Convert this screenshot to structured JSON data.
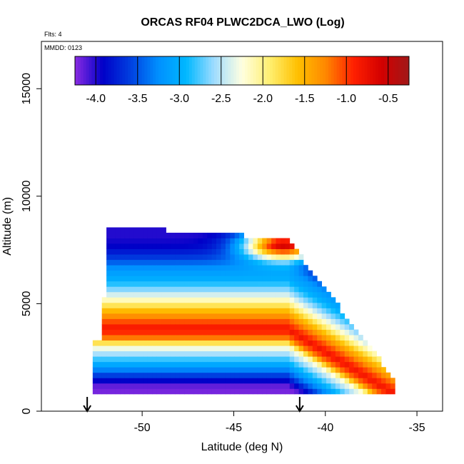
{
  "chart_data": {
    "type": "heatmap",
    "title": "ORCAS RF04 PLWC2DCA_LWO (Log)",
    "annotations": {
      "flights": "Flts: 4",
      "date": "MMDD: 0123"
    },
    "xlabel": "Latitude (deg N)",
    "ylabel": "Altitude (m)",
    "xlim": [
      -55.5,
      -33.6
    ],
    "ylim": [
      0,
      17200
    ],
    "x_ticks": [
      -50,
      -45,
      -40,
      -35
    ],
    "x_tick_labels": [
      "-50",
      "-45",
      "-40",
      "-35"
    ],
    "y_ticks": [
      0,
      5000,
      10000,
      15000
    ],
    "y_tick_labels": [
      "0",
      "5000",
      "10000",
      "15000"
    ],
    "colorbar": {
      "min": -4.25,
      "max": -0.25,
      "ticks": [
        -4.0,
        -3.5,
        -3.0,
        -2.5,
        -2.0,
        -1.5,
        -1.0,
        -0.5
      ],
      "tick_labels": [
        "-4.0",
        "-3.5",
        "-3.0",
        "-2.5",
        "-2.0",
        "-1.5",
        "-1.0",
        "-0.5"
      ],
      "colors": [
        "#8a2be2",
        "#0000c8",
        "#0040e0",
        "#0090ff",
        "#00b8ff",
        "#9fdcff",
        "#ffffe0",
        "#ffef70",
        "#ffc000",
        "#ff8800",
        "#ff2000",
        "#d40000",
        "#a01818"
      ]
    },
    "domain": {
      "lat_min": -52.7,
      "lat_max": -36.3,
      "left_top_lat": -52.0,
      "top_alt": 8500,
      "right_top_lat": -42.2,
      "right_top_alt": 7900,
      "right_bottom_lat": -36.3,
      "right_bottom_alt": 1300,
      "bottom_alt": 800
    },
    "layers": [
      {
        "alt": 1000,
        "value": -4.2
      },
      {
        "alt": 1300,
        "value": -3.9
      },
      {
        "alt": 1700,
        "value": -3.4
      },
      {
        "alt": 2100,
        "value": -3.0
      },
      {
        "alt": 2500,
        "value": -2.6
      },
      {
        "alt": 2900,
        "value": -2.2
      },
      {
        "alt": 3300,
        "value": -1.2
      },
      {
        "alt": 3700,
        "value": -0.8
      },
      {
        "alt": 4100,
        "value": -1.1
      },
      {
        "alt": 4600,
        "value": -1.6
      },
      {
        "alt": 5100,
        "value": -2.2
      },
      {
        "alt": 5500,
        "value": -2.6
      },
      {
        "alt": 6000,
        "value": -3.0
      },
      {
        "alt": 6500,
        "value": -3.2
      },
      {
        "alt": 7000,
        "value": -3.6
      },
      {
        "alt": 7500,
        "value": -3.9
      },
      {
        "alt": 8000,
        "value": -4.0
      }
    ],
    "hot_cap": {
      "lat": -42.4,
      "alt": 7600,
      "value": -0.6
    },
    "markers": [
      -53.0,
      -41.4
    ]
  }
}
